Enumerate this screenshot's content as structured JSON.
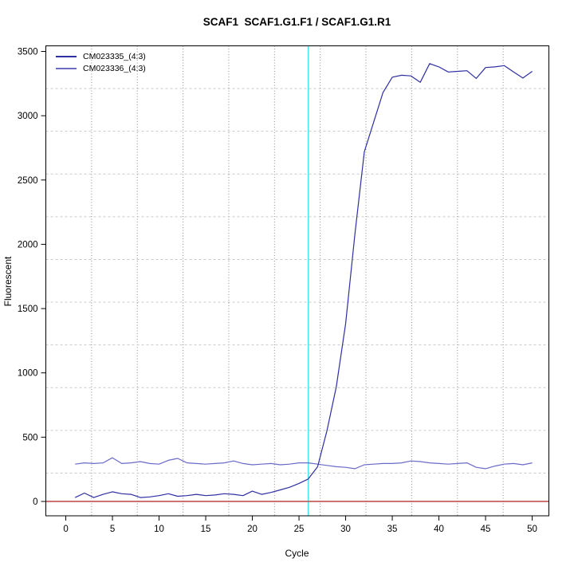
{
  "window": {
    "background": "#ffffff"
  },
  "chart_data": {
    "type": "line",
    "title": "SCAF1  SCAF1.G1.F1 / SCAF1.G1.R1",
    "xlabel": "Cycle",
    "ylabel": "Fluorescent",
    "x": [
      1,
      2,
      3,
      4,
      5,
      6,
      7,
      8,
      9,
      10,
      11,
      12,
      13,
      14,
      15,
      16,
      17,
      18,
      19,
      20,
      21,
      22,
      23,
      24,
      25,
      26,
      27,
      28,
      29,
      30,
      31,
      32,
      33,
      34,
      35,
      36,
      37,
      38,
      39,
      40,
      41,
      42,
      43,
      44,
      45,
      46,
      47,
      48,
      49,
      50
    ],
    "series": [
      {
        "name": "CM023335_(4:3)",
        "color": "#2F2FA2",
        "values": [
          30,
          65,
          30,
          55,
          75,
          60,
          55,
          30,
          35,
          45,
          60,
          40,
          45,
          55,
          45,
          50,
          60,
          55,
          45,
          80,
          55,
          70,
          90,
          110,
          140,
          175,
          270,
          550,
          890,
          1380,
          2080,
          2720,
          2950,
          3180,
          3300,
          3315,
          3310,
          3260,
          3405,
          3380,
          3340,
          3345,
          3350,
          3290,
          3375,
          3380,
          3390,
          3340,
          3293,
          3345
        ]
      },
      {
        "name": "CM023336_(4:3)",
        "color": "#6A6AC8",
        "values": [
          290,
          300,
          295,
          300,
          340,
          295,
          300,
          310,
          295,
          290,
          320,
          335,
          300,
          295,
          290,
          295,
          300,
          315,
          295,
          285,
          290,
          295,
          285,
          290,
          300,
          300,
          290,
          280,
          270,
          265,
          255,
          285,
          290,
          295,
          295,
          300,
          315,
          310,
          300,
          295,
          290,
          295,
          300,
          265,
          255,
          275,
          290,
          295,
          285,
          300
        ]
      }
    ],
    "x_ticks": [
      0,
      5,
      10,
      15,
      20,
      25,
      30,
      35,
      40,
      45,
      50
    ],
    "y_ticks": [
      0,
      500,
      1000,
      1500,
      2000,
      2500,
      3000,
      3500
    ],
    "xlim": [
      -2.14,
      51.79
    ],
    "ylim": [
      -111.7,
      3543.5
    ],
    "threshold_line": {
      "orientation": "vertical",
      "x": 26,
      "color": "#4FE3EF"
    },
    "baseline": {
      "orientation": "horizontal",
      "y": 0,
      "color": "#C25252"
    },
    "grid": {
      "divisions": 11,
      "vertical_color": "#8A8A8A",
      "horizontal_color": "#C9C9C9"
    },
    "legend": {
      "position": "top-left"
    },
    "axis_color": "#000000"
  }
}
